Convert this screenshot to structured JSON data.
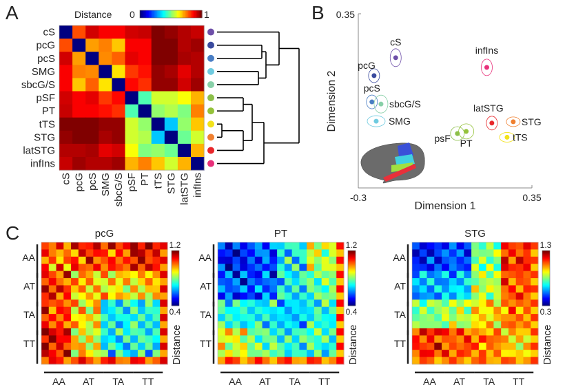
{
  "panel_labels": {
    "a": "A",
    "b": "B",
    "c": "C"
  },
  "chart_data": [
    {
      "panel": "A",
      "type": "heatmap",
      "colorbar": {
        "label": "Distance",
        "min_label": "0",
        "max_label": "1",
        "range": [
          0,
          1
        ],
        "colormap": "jet"
      },
      "labels": [
        "cS",
        "pcG",
        "pcS",
        "SMG",
        "sbcG/S",
        "pSF",
        "PT",
        "tTS",
        "STG",
        "latSTG",
        "infIns"
      ],
      "dot_colors": [
        "#6e4fa8",
        "#3a4a9e",
        "#4a7ec4",
        "#6fcbe0",
        "#88d0a8",
        "#8cbf4a",
        "#94c23a",
        "#f2e21a",
        "#f08030",
        "#e8262a",
        "#e8307a"
      ],
      "values": [
        [
          0,
          0.8,
          0.92,
          0.88,
          0.88,
          0.92,
          0.93,
          1.0,
          0.98,
          0.95,
          0.93
        ],
        [
          0.8,
          0,
          0.72,
          0.75,
          0.68,
          0.88,
          0.88,
          1.0,
          1.0,
          0.95,
          0.97
        ],
        [
          0.92,
          0.72,
          0,
          0.74,
          0.78,
          0.9,
          0.88,
          1.0,
          1.0,
          0.96,
          0.95
        ],
        [
          0.88,
          0.75,
          0.74,
          0,
          0.65,
          0.82,
          0.86,
          0.98,
          0.96,
          0.9,
          0.95
        ],
        [
          0.88,
          0.68,
          0.78,
          0.65,
          0,
          0.87,
          0.83,
          0.98,
          0.98,
          0.92,
          0.97
        ],
        [
          0.92,
          0.88,
          0.9,
          0.82,
          0.87,
          0,
          0.45,
          0.58,
          0.58,
          0.62,
          0.7
        ],
        [
          0.93,
          0.88,
          0.88,
          0.86,
          0.83,
          0.45,
          0,
          0.52,
          0.55,
          0.5,
          0.75
        ],
        [
          1.0,
          1.0,
          1.0,
          0.98,
          0.98,
          0.58,
          0.52,
          0,
          0.32,
          0.52,
          0.68
        ],
        [
          0.98,
          1.0,
          1.0,
          0.96,
          0.98,
          0.58,
          0.55,
          0.32,
          0,
          0.48,
          0.58
        ],
        [
          0.95,
          0.95,
          0.96,
          0.9,
          0.92,
          0.62,
          0.5,
          0.52,
          0.48,
          0,
          0.7
        ],
        [
          0.93,
          0.97,
          0.95,
          0.95,
          0.97,
          0.7,
          0.75,
          0.68,
          0.58,
          0.7,
          0
        ]
      ],
      "dendrogram": [
        [
          [
            0,
            [
              [
                1,
                2
              ],
              [
                3,
                4
              ]
            ]
          ]
        ],
        [
          [
            [
              5,
              6
            ],
            [
              [
                7,
                8
              ],
              9
            ]
          ],
          10
        ]
      ]
    },
    {
      "panel": "B",
      "type": "scatter",
      "xlabel": "Dimension 1",
      "ylabel": "Dimension 2",
      "xlim": [
        -0.3,
        0.35
      ],
      "ylim": [
        -0.3,
        0.35
      ],
      "x_tick_labels": [
        "-0.3",
        "0.35"
      ],
      "y_tick_labels": [
        "0.35"
      ],
      "points": [
        {
          "label": "cS",
          "x": -0.16,
          "y": 0.186,
          "color": "#6e4fa8"
        },
        {
          "label": "pcG",
          "x": -0.241,
          "y": 0.119,
          "color": "#3a4a9e"
        },
        {
          "label": "pcS",
          "x": -0.249,
          "y": 0.021,
          "color": "#4a7ec4"
        },
        {
          "label": "sbcG/S",
          "x": -0.215,
          "y": 0.013,
          "color": "#88d0a8"
        },
        {
          "label": "SMG",
          "x": -0.233,
          "y": -0.051,
          "color": "#6fcbe0"
        },
        {
          "label": "psF",
          "x": 0.071,
          "y": -0.097,
          "color": "#8cbf4a"
        },
        {
          "label": "PT",
          "x": 0.104,
          "y": -0.089,
          "color": "#94c23a"
        },
        {
          "label": "latSTG",
          "x": 0.2,
          "y": -0.058,
          "color": "#e8262a"
        },
        {
          "label": "STG",
          "x": 0.28,
          "y": -0.053,
          "color": "#f08030"
        },
        {
          "label": "tTS",
          "x": 0.257,
          "y": -0.111,
          "color": "#f2e21a"
        },
        {
          "label": "infIns",
          "x": 0.181,
          "y": 0.15,
          "color": "#e8307a"
        }
      ]
    },
    {
      "panel": "C1",
      "type": "heatmap",
      "title": "pcG",
      "groups": [
        "AA",
        "AT",
        "TA",
        "TT"
      ],
      "colorbar": {
        "label": "Distance",
        "max_label": "1.2",
        "min_label": "0.4",
        "range": [
          0.4,
          1.2
        ]
      },
      "block_means": [
        [
          1.0,
          1.05,
          1.05,
          1.1
        ],
        [
          1.05,
          0.95,
          0.92,
          0.95
        ],
        [
          1.05,
          0.92,
          0.7,
          0.72
        ],
        [
          1.1,
          0.92,
          0.7,
          0.7
        ]
      ],
      "edge_value": 1.05
    },
    {
      "panel": "C2",
      "type": "heatmap",
      "title": "PT",
      "groups": [
        "AA",
        "AT",
        "TA",
        "TT"
      ],
      "colorbar": {
        "label": "Distance",
        "max_label": "1.2",
        "min_label": "0.4",
        "range": [
          0.4,
          1.2
        ]
      },
      "block_means": [
        [
          0.5,
          0.55,
          0.7,
          0.85
        ],
        [
          0.55,
          0.55,
          0.7,
          0.8
        ],
        [
          0.72,
          0.7,
          0.66,
          0.72
        ],
        [
          0.88,
          0.8,
          0.72,
          0.72
        ]
      ],
      "edge_value": 1.02
    },
    {
      "panel": "C3",
      "type": "heatmap",
      "title": "STG",
      "groups": [
        "AA",
        "AT",
        "TA",
        "TT"
      ],
      "colorbar": {
        "label": "Distance",
        "max_label": "1.3",
        "min_label": "0.3",
        "range": [
          0.3,
          1.3
        ]
      },
      "block_means": [
        [
          0.45,
          0.5,
          0.8,
          1.15
        ],
        [
          0.6,
          0.6,
          0.85,
          1.1
        ],
        [
          0.8,
          0.85,
          0.95,
          1.05
        ],
        [
          1.15,
          1.1,
          1.05,
          0.95
        ]
      ],
      "edge_value": 1.05
    }
  ]
}
